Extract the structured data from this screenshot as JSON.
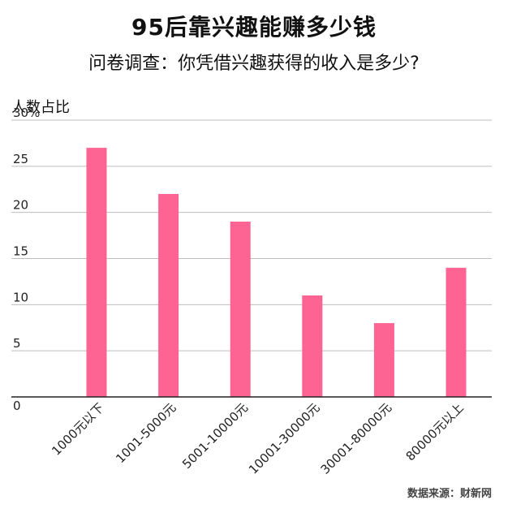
{
  "title": "95后靠兴趣能赚多少钱",
  "subtitle": "问卷调查：你凭借兴趣获得的收入是多少?",
  "source": "数据来源：财新网",
  "colors": {
    "bar": "#fd6494",
    "grid": "#bdbdbd",
    "axis": "#222222"
  },
  "chart_data": {
    "type": "bar",
    "ylabel": "人数占比",
    "ylim": [
      0,
      30
    ],
    "yticks": [
      0,
      5,
      10,
      15,
      20,
      25,
      30
    ],
    "ytick_labels": [
      "0",
      "5",
      "10",
      "15",
      "20",
      "25",
      "30%"
    ],
    "grid": true,
    "categories": [
      "1000元以下",
      "1001-5000元",
      "5001-10000元",
      "10001-30000元",
      "30001-80000元",
      "80000元以上"
    ],
    "values": [
      27,
      22,
      19,
      11,
      8,
      14
    ]
  }
}
